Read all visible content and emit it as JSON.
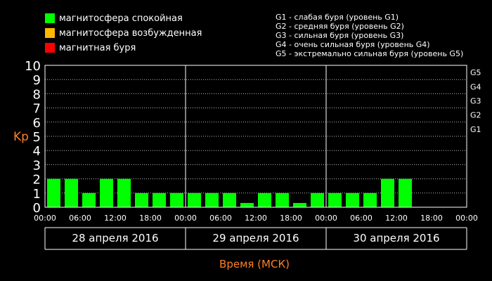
{
  "legend": {
    "items": [
      {
        "label": "магнитосфера спокойная",
        "color": "#00ff00"
      },
      {
        "label": "магнитосфера возбужденная",
        "color": "#ffb800"
      },
      {
        "label": "магнитная буря",
        "color": "#ff0000"
      }
    ],
    "g_levels": [
      "G1 - слабая буря (уровень G1)",
      "G2 - средняя буря (уровень G2)",
      "G3 - сильная буря (уровень G3)",
      "G4 - очень сильная буря (уровень G4)",
      "G5 - экстремально сильная буря (уровень G5)"
    ]
  },
  "colors": {
    "background": "#000000",
    "bar_quiet": "#00ff00",
    "axis_title": "#ff7f27",
    "text": "#ffffff"
  },
  "chart_data": {
    "type": "bar",
    "ylabel": "Kp",
    "xlabel": "Время (МСК)",
    "ylim": [
      0,
      10
    ],
    "y_ticks": [
      "0",
      "1",
      "2",
      "3",
      "4",
      "5",
      "6",
      "7",
      "8",
      "9",
      "10"
    ],
    "g_ticks": [
      {
        "label": "G1",
        "kp": 5
      },
      {
        "label": "G2",
        "kp": 6
      },
      {
        "label": "G3",
        "kp": 7
      },
      {
        "label": "G4",
        "kp": 8
      },
      {
        "label": "G5",
        "kp": 9
      }
    ],
    "x_ticks": [
      "00:00",
      "06:00",
      "12:00",
      "18:00",
      "00:00",
      "06:00",
      "12:00",
      "18:00",
      "00:00",
      "06:00",
      "12:00",
      "18:00",
      "00:00"
    ],
    "days": [
      "28 апреля 2016",
      "29 апреля 2016",
      "30 апреля 2016"
    ],
    "interval_hours": 3,
    "values": [
      2,
      2,
      1,
      2,
      2,
      1,
      1,
      1,
      1,
      1,
      1,
      0.3,
      1,
      1,
      0.3,
      1,
      1,
      1,
      1,
      2,
      2
    ]
  }
}
